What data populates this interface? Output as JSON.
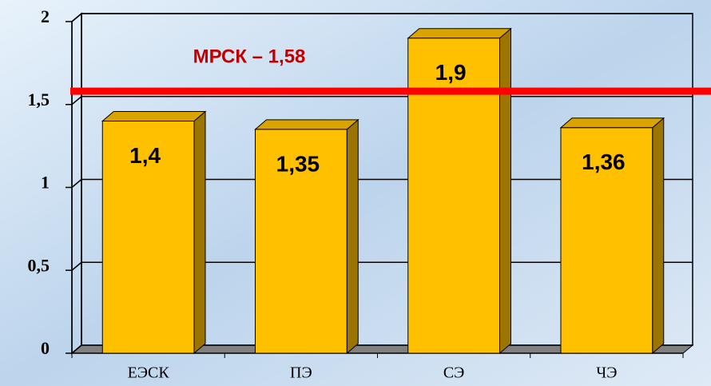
{
  "chart_data": {
    "type": "bar",
    "categories": [
      "ЕЭСК",
      "ПЭ",
      "СЭ",
      "ЧЭ"
    ],
    "values": [
      1.4,
      1.35,
      1.9,
      1.36
    ],
    "value_labels": [
      "1,4",
      "1,35",
      "1,9",
      "1,36"
    ],
    "color": "#ffc000",
    "ylim": [
      0,
      2
    ],
    "yticks": [
      0,
      {
        "value": 0.5,
        "label": "0,5"
      },
      1,
      {
        "value": 1.5,
        "label": "1,5"
      },
      2
    ],
    "grid": true,
    "reference_line": {
      "value": 1.58,
      "label": "МРСК – 1,58",
      "color": "#ff0000"
    }
  }
}
